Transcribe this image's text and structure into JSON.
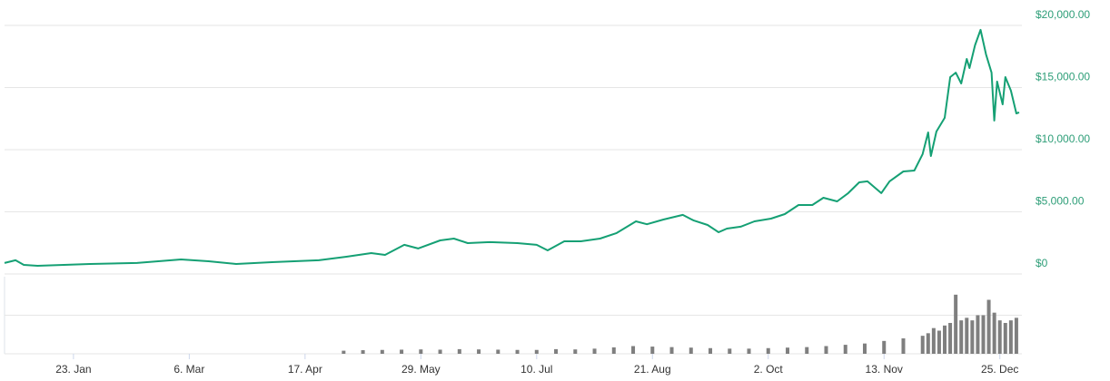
{
  "chart_data": [
    {
      "type": "line",
      "color": "#15a074",
      "x": [
        -3,
        1,
        4,
        9,
        28,
        45,
        61,
        71,
        81,
        94,
        111,
        121,
        130,
        135,
        142,
        147,
        155,
        160,
        165,
        173,
        183,
        190,
        194,
        200,
        206,
        213,
        219,
        226,
        230,
        236,
        243,
        247,
        252,
        256,
        259,
        264,
        269,
        275,
        280,
        285,
        290,
        294,
        299,
        303,
        307,
        310,
        315,
        318,
        323,
        327,
        330,
        332,
        333,
        335,
        338,
        340,
        342,
        344,
        346,
        347,
        349,
        351,
        353,
        355,
        356,
        357,
        359,
        360,
        362,
        364,
        365
      ],
      "values": [
        880,
        1100,
        730,
        660,
        800,
        880,
        1170,
        1020,
        800,
        950,
        1100,
        1390,
        1680,
        1530,
        2340,
        2050,
        2700,
        2850,
        2480,
        2560,
        2480,
        2340,
        1900,
        2630,
        2630,
        2850,
        3290,
        4230,
        4000,
        4380,
        4750,
        4300,
        3940,
        3360,
        3650,
        3800,
        4230,
        4450,
        4820,
        5550,
        5550,
        6130,
        5840,
        6500,
        7370,
        7450,
        6500,
        7450,
        8250,
        8320,
        9640,
        11390,
        9490,
        11460,
        12560,
        15840,
        16200,
        15330,
        17300,
        16570,
        18400,
        19640,
        17670,
        16200,
        12340,
        15480,
        13650,
        15840,
        14750,
        12920,
        13000
      ],
      "xlim": [
        -3,
        366
      ],
      "ylim": [
        0,
        20000
      ],
      "yticks": [
        {
          "value": 0,
          "label": "$0"
        },
        {
          "value": 5000,
          "label": "$5,000.00"
        },
        {
          "value": 10000,
          "label": "$10,000.00"
        },
        {
          "value": 15000,
          "label": "$15,000.00"
        },
        {
          "value": 20000,
          "label": "$20,000.00"
        }
      ],
      "grid": true
    },
    {
      "type": "bar",
      "color": "#7f7f7f",
      "x": [
        120,
        127,
        134,
        141,
        148,
        155,
        162,
        169,
        176,
        183,
        190,
        197,
        204,
        211,
        218,
        225,
        232,
        239,
        246,
        253,
        260,
        267,
        274,
        281,
        288,
        295,
        302,
        309,
        316,
        323,
        330,
        332,
        334,
        336,
        338,
        340,
        342,
        344,
        346,
        348,
        350,
        352,
        354,
        356,
        358,
        360,
        362,
        364
      ],
      "values": [
        1.2,
        1.4,
        1.5,
        1.6,
        1.7,
        1.6,
        1.8,
        1.7,
        1.6,
        1.5,
        1.5,
        1.8,
        1.7,
        2.0,
        2.5,
        3.0,
        2.8,
        2.6,
        2.4,
        2.2,
        2.0,
        2.0,
        2.2,
        2.4,
        2.6,
        3.0,
        3.5,
        4.0,
        5.0,
        6.0,
        7.0,
        8,
        10,
        9,
        11,
        12,
        23,
        13,
        14,
        13,
        15,
        15,
        21,
        16,
        13,
        12,
        13,
        14
      ],
      "xlim": [
        -3,
        366
      ],
      "ylim": [
        0,
        30
      ],
      "yticks": [
        0,
        15
      ],
      "grid": true,
      "xticks": [
        {
          "value": 22,
          "label": "23. Jan"
        },
        {
          "value": 64,
          "label": "6. Mar"
        },
        {
          "value": 106,
          "label": "17. Apr"
        },
        {
          "value": 148,
          "label": "29. May"
        },
        {
          "value": 190,
          "label": "10. Jul"
        },
        {
          "value": 232,
          "label": "21. Aug"
        },
        {
          "value": 274,
          "label": "2. Oct"
        },
        {
          "value": 316,
          "label": "13. Nov"
        },
        {
          "value": 358,
          "label": "25. Dec"
        }
      ]
    }
  ]
}
